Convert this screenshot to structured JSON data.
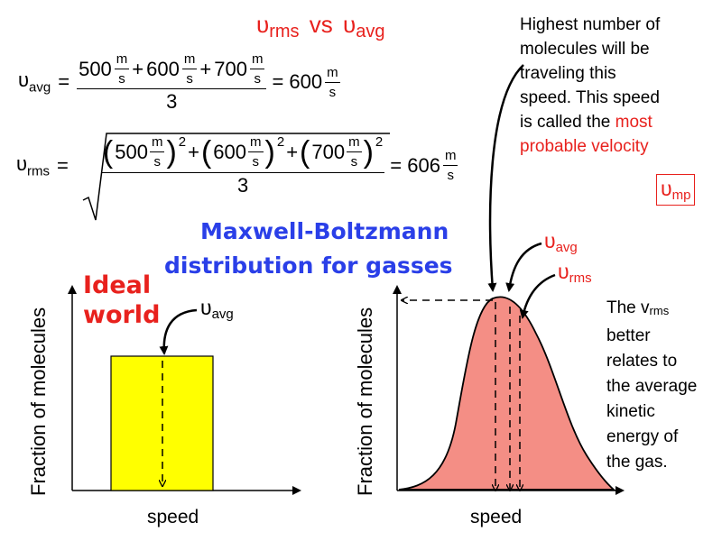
{
  "title": {
    "v1": "υ",
    "sub1": "rms",
    "vs": "vs",
    "v2": "υ",
    "sub2": "avg"
  },
  "eq_avg": {
    "lhs": "υ",
    "lhs_sub": "avg",
    "num": [
      "500",
      "m/s",
      "+",
      "600",
      "m/s",
      "+",
      "700",
      "m/s"
    ],
    "den": "3",
    "result": "= 600",
    "unit_top": "m",
    "unit_bot": "s"
  },
  "eq_rms": {
    "lhs": "υ",
    "lhs_sub": "rms",
    "terms": [
      {
        "value": "500",
        "unit_top": "m",
        "unit_bot": "s",
        "exp": "2"
      },
      {
        "value": "600",
        "unit_top": "m",
        "unit_bot": "s",
        "exp": "2"
      },
      {
        "value": "700",
        "unit_top": "m",
        "unit_bot": "s",
        "exp": "2"
      }
    ],
    "den": "3",
    "result": "= 606",
    "unit_top": "m",
    "unit_bot": "s"
  },
  "note": {
    "line1": "Highest number of",
    "line2": "molecules will be",
    "line3": "traveling this",
    "line4": "speed. This speed",
    "line5": "is called the",
    "line5_red": "most",
    "line6_red": "probable velocity",
    "mp_symbol": "υ",
    "mp_sub": "mp"
  },
  "center_title": {
    "line1": "Maxwell-Boltzmann",
    "line2": "distribution for  gasses"
  },
  "left_chart": {
    "title_line1": "Ideal",
    "title_line2": "world",
    "ylabel": "Fraction of molecules",
    "xlabel": "speed",
    "marker_symbol": "υ",
    "marker_sub": "avg",
    "bar_color": "#ffff00"
  },
  "right_chart": {
    "ylabel": "Fraction of molecules",
    "xlabel": "speed",
    "avg_symbol": "υ",
    "avg_sub": "avg",
    "rms_symbol": "υ",
    "rms_sub": "rms",
    "curve_color": "#f48e85"
  },
  "rms_note": {
    "line1_pre": "The v",
    "line1_sub": "rms",
    "line2": "better",
    "line3": "relates to",
    "line4": "the average",
    "line5": "kinetic",
    "line6": "energy of",
    "line7": "the gas."
  }
}
